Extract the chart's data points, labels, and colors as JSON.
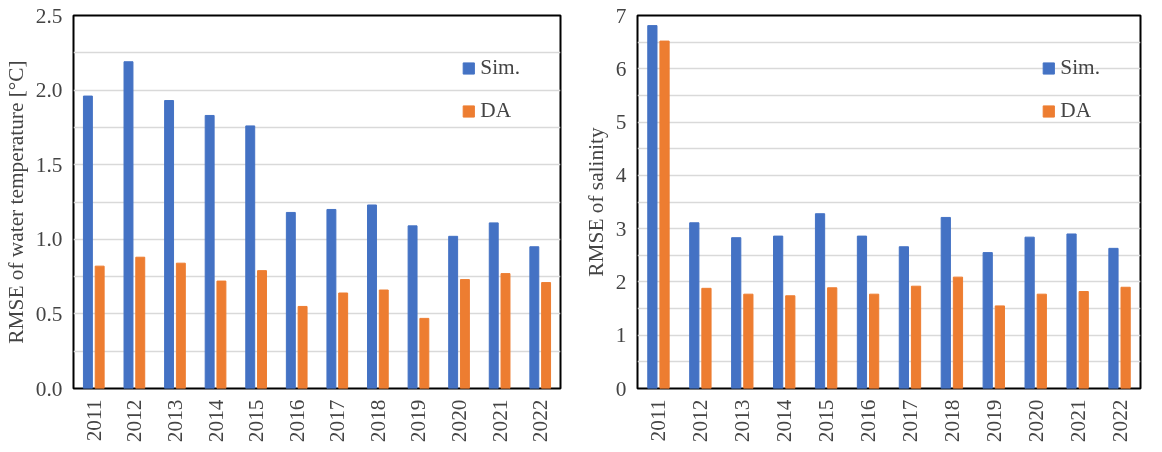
{
  "chart_data": [
    {
      "type": "bar",
      "ylabel": "RMSE of water temperature [°C]",
      "categories": [
        "2011",
        "2012",
        "2013",
        "2014",
        "2015",
        "2016",
        "2017",
        "2018",
        "2019",
        "2020",
        "2021",
        "2022"
      ],
      "series": [
        {
          "name": "Sim.",
          "color": "#4472c4",
          "values": [
            1.96,
            2.19,
            1.93,
            1.83,
            1.76,
            1.18,
            1.2,
            1.23,
            1.09,
            1.02,
            1.11,
            0.95
          ]
        },
        {
          "name": "DA",
          "color": "#ed7d31",
          "values": [
            0.82,
            0.88,
            0.84,
            0.72,
            0.79,
            0.55,
            0.64,
            0.66,
            0.47,
            0.73,
            0.77,
            0.71
          ]
        }
      ],
      "ylim": [
        0,
        2.5
      ],
      "yticks": [
        {
          "value": 0,
          "label": "0.0"
        },
        {
          "value": 0.25,
          "label": null
        },
        {
          "value": 0.5,
          "label": "0.5"
        },
        {
          "value": 0.75,
          "label": null
        },
        {
          "value": 1,
          "label": "1.0"
        },
        {
          "value": 1.25,
          "label": null
        },
        {
          "value": 1.5,
          "label": "1.5"
        },
        {
          "value": 1.75,
          "label": null
        },
        {
          "value": 2,
          "label": "2.0"
        },
        {
          "value": 2.25,
          "label": null
        },
        {
          "value": 2.5,
          "label": "2.5"
        }
      ],
      "grid": "y",
      "legend": "top right"
    },
    {
      "type": "bar",
      "ylabel": "RMSE of salinity",
      "categories": [
        "2011",
        "2012",
        "2013",
        "2014",
        "2015",
        "2016",
        "2017",
        "2018",
        "2019",
        "2020",
        "2021",
        "2022"
      ],
      "series": [
        {
          "name": "Sim.",
          "color": "#4472c4",
          "values": [
            6.81,
            3.11,
            2.83,
            2.86,
            3.28,
            2.86,
            2.66,
            3.21,
            2.55,
            2.84,
            2.9,
            2.63
          ]
        },
        {
          "name": "DA",
          "color": "#ed7d31",
          "values": [
            6.52,
            1.88,
            1.77,
            1.74,
            1.89,
            1.77,
            1.92,
            2.09,
            1.55,
            1.77,
            1.82,
            1.9
          ]
        }
      ],
      "ylim": [
        0,
        7
      ],
      "yticks": [
        0,
        {
          "value": 0.5,
          "label": null
        },
        1,
        {
          "value": 1.5,
          "label": null
        },
        2,
        {
          "value": 2.5,
          "label": null
        },
        3,
        {
          "value": 3.5,
          "label": null
        },
        4,
        {
          "value": 4.5,
          "label": null
        },
        5,
        {
          "value": 5.5,
          "label": null
        },
        6,
        {
          "value": 6.5,
          "label": null
        },
        7
      ],
      "grid": "y",
      "legend": "top right"
    }
  ]
}
